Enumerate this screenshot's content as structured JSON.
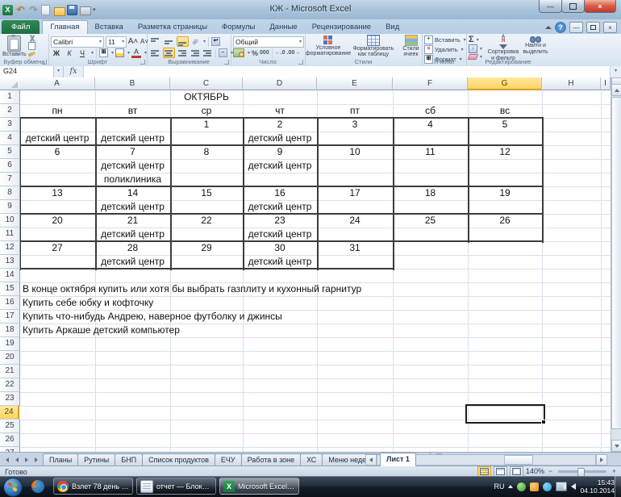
{
  "window": {
    "title": "КЖ - Microsoft Excel"
  },
  "ribbon": {
    "tabs": [
      {
        "label": "Файл",
        "type": "file"
      },
      {
        "label": "Главная",
        "active": true
      },
      {
        "label": "Вставка"
      },
      {
        "label": "Разметка страницы"
      },
      {
        "label": "Формулы"
      },
      {
        "label": "Данные"
      },
      {
        "label": "Рецензирование"
      },
      {
        "label": "Вид"
      }
    ],
    "groups": {
      "clipboard": {
        "label": "Буфер обмена",
        "paste": "Вставить"
      },
      "font": {
        "label": "Шрифт",
        "font_name": "Calibri",
        "font_size": "11",
        "bold": "Ж",
        "italic": "К",
        "underline": "Ч"
      },
      "alignment": {
        "label": "Выравнивание"
      },
      "number": {
        "label": "Число",
        "format": "Общий",
        "percent": "%",
        "thousands": "000"
      },
      "styles": {
        "label": "Стили",
        "buttons": [
          "Условное форматирование",
          "Форматировать как таблицу",
          "Стили ячеек"
        ]
      },
      "cells": {
        "label": "Ячейки",
        "buttons": [
          "Вставить",
          "Удалить",
          "Формат"
        ]
      },
      "editing": {
        "label": "Редактирование",
        "sigma": "Σ",
        "buttons": [
          "Сортировка и фильтр",
          "Найти и выделить"
        ]
      }
    }
  },
  "formula_bar": {
    "name_box": "G24",
    "fx": "fx",
    "value": ""
  },
  "sheet": {
    "columns": [
      "A",
      "B",
      "C",
      "D",
      "E",
      "F",
      "G",
      "H",
      "I"
    ],
    "selected_column": "G",
    "selected_row": 24,
    "row_count": 27,
    "month_title": "ОКТЯБРЬ",
    "weekdays": [
      "пн",
      "вт",
      "ср",
      "чт",
      "пт",
      "сб",
      "вс"
    ],
    "weeks": [
      {
        "dates": [
          "",
          "",
          "1",
          "2",
          "3",
          "4",
          "5"
        ],
        "notes": [
          "детский центр",
          "детский центр",
          "",
          "детский центр",
          "",
          "",
          ""
        ]
      },
      {
        "dates": [
          "6",
          "7",
          "8",
          "9",
          "10",
          "11",
          "12"
        ],
        "notes": [
          "",
          "детский центр",
          "",
          "детский центр",
          "",
          "",
          ""
        ],
        "notes2": [
          "",
          "поликлиника",
          "",
          "",
          "",
          "",
          ""
        ]
      },
      {
        "dates": [
          "13",
          "14",
          "15",
          "16",
          "17",
          "18",
          "19"
        ],
        "notes": [
          "",
          "детский центр",
          "",
          "детский центр",
          "",
          "",
          ""
        ]
      },
      {
        "dates": [
          "20",
          "21",
          "22",
          "23",
          "24",
          "25",
          "26"
        ],
        "notes": [
          "",
          "детский центр",
          "",
          "детский центр",
          "",
          "",
          ""
        ]
      },
      {
        "dates": [
          "27",
          "28",
          "29",
          "30",
          "31"
        ],
        "notes": [
          "",
          "детский центр",
          "",
          "детский центр",
          ""
        ]
      }
    ],
    "todo": [
      "В конце октября купить или хотя бы выбрать газплиту и кухонный гарнитур",
      "Купить себе юбку и кофточку",
      "Купить что-нибудь Андрею, наверное футболку и джинсы",
      "Купить Аркаше детский компьютер"
    ]
  },
  "sheet_tabs": {
    "tabs": [
      "Планы",
      "Рутины",
      "БНП",
      "Список продуктов",
      "ЕЧУ",
      "Работа в зоне",
      "ХС",
      "Меню недели",
      "Лист 1"
    ],
    "active": "Лист 1"
  },
  "status_bar": {
    "ready": "Готово",
    "zoom": "140%"
  },
  "taskbar": {
    "buttons": [
      {
        "icon": "chrome",
        "label": "Взлет 78 день 21-..."
      },
      {
        "icon": "notepad",
        "label": "отчет — Блокнот"
      },
      {
        "icon": "excel",
        "label": "Microsoft Excel - ...",
        "active": true
      }
    ],
    "tray": {
      "language": "RU",
      "time": "15:43",
      "date": "04.10.2014"
    }
  },
  "colors": {
    "selection_amber": "#fbd35e",
    "file_tab_green": "#1c6e41",
    "close_button_red": "#c23b26",
    "calendar_border": "#3c3c3c"
  }
}
